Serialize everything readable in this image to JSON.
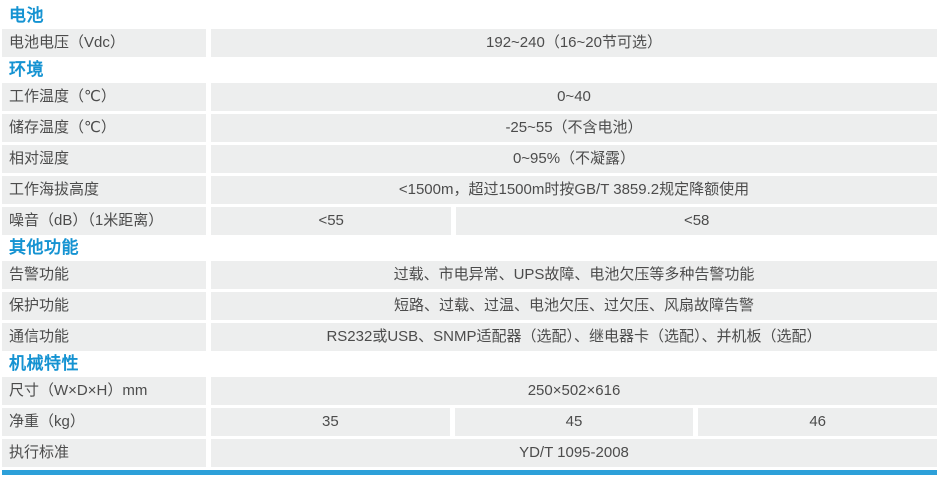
{
  "colors": {
    "section_title": "#1593d2",
    "row_background": "#edeeee",
    "text": "#4c4c4c",
    "accent_bar": "#2da0d9"
  },
  "value_columns": 3,
  "sections": [
    {
      "title": "电池",
      "rows": [
        {
          "label": "电池电压（Vdc）",
          "values": [
            "192~240（16~20节可选）"
          ],
          "spans": [
            3
          ]
        }
      ]
    },
    {
      "title": "环境",
      "rows": [
        {
          "label": "工作温度（℃）",
          "values": [
            "0~40"
          ],
          "spans": [
            3
          ]
        },
        {
          "label": "储存温度（℃）",
          "values": [
            "-25~55（不含电池）"
          ],
          "spans": [
            3
          ]
        },
        {
          "label": "相对湿度",
          "values": [
            "0~95%（不凝露）"
          ],
          "spans": [
            3
          ]
        },
        {
          "label": "工作海拔高度",
          "values": [
            "<1500m，超过1500m时按GB/T 3859.2规定降额使用"
          ],
          "spans": [
            3
          ]
        },
        {
          "label": "噪音（dB）（1米距离）",
          "values": [
            "<55",
            "<58"
          ],
          "spans": [
            1,
            2
          ]
        }
      ]
    },
    {
      "title": "其他功能",
      "rows": [
        {
          "label": "告警功能",
          "values": [
            "过载、市电异常、UPS故障、电池欠压等多种告警功能"
          ],
          "spans": [
            3
          ]
        },
        {
          "label": "保护功能",
          "values": [
            "短路、过载、过温、电池欠压、过欠压、风扇故障告警"
          ],
          "spans": [
            3
          ]
        },
        {
          "label": "通信功能",
          "values": [
            "RS232或USB、SNMP适配器（选配）、继电器卡（选配）、并机板（选配）"
          ],
          "spans": [
            3
          ]
        }
      ]
    },
    {
      "title": "机械特性",
      "rows": [
        {
          "label": "尺寸（W×D×H）mm",
          "values": [
            "250×502×616"
          ],
          "spans": [
            3
          ]
        },
        {
          "label": "净重（kg）",
          "values": [
            "35",
            "45",
            "46"
          ],
          "spans": [
            1,
            1,
            1
          ]
        },
        {
          "label": "执行标准",
          "values": [
            "YD/T 1095-2008"
          ],
          "spans": [
            3
          ]
        }
      ]
    }
  ]
}
